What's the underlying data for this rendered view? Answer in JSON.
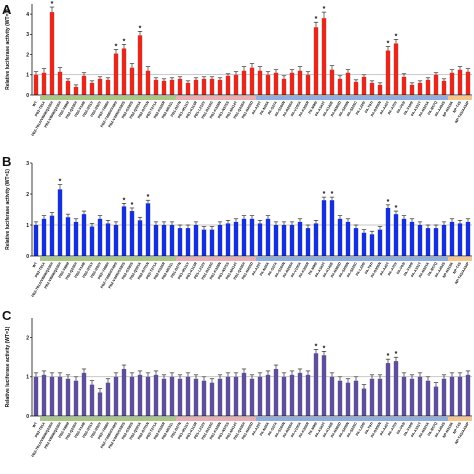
{
  "chart_data": [
    {
      "type": "bar",
      "panel": "A",
      "ylabel": "Relative luciferase activity (WT=1)",
      "ylim": [
        0,
        4.5
      ],
      "yticks": [
        0,
        1,
        2,
        3,
        4
      ],
      "reference_line": 1,
      "color": "#e02a20",
      "categories": [
        "WT",
        "PB2-T81A",
        "PB2-T81A/V89M/Q236H",
        "PB2-V89M/Q236H",
        "PB2-V89M",
        "PB2-Q236H",
        "PB2-V148I",
        "PB2-I251V",
        "PB2-I292V",
        "PB2-Y488H",
        "PB2-Y488H/V495I",
        "PB2-V495I/G590S",
        "PB2-G590S",
        "PB2-Q591K",
        "PB2-D701N",
        "PB2-T271A",
        "PB2-K526R",
        "PB2-M631L",
        "PB1-D27N",
        "PB1-M111V",
        "PB1-K113R",
        "PB1-L212V",
        "PB1-D216G",
        "PB1-K328N",
        "PB1-N375S",
        "PB1-M414T",
        "PB1-Q436H",
        "PB1-N455D",
        "PA-A20T",
        "PA-N26K",
        "PA-S37A",
        "PA-S184N",
        "PA-R266H",
        "PA-V100A",
        "PA-K356R",
        "PA-M86I",
        "PA-A343T",
        "PA-K142E",
        "PA-N383D",
        "PA-S409N",
        "PA-S225C",
        "PA-L226I",
        "PA-T97I",
        "PA-D306N",
        "PA-A45T",
        "PA-A70V",
        "PA-V63I",
        "PA-V100I",
        "PA-A331T",
        "PA-N321K",
        "PA-R57Q",
        "PA-A404S",
        "NP-N319K",
        "NP-T4S",
        "NP-T4S/A434P"
      ],
      "values": [
        1.0,
        1.1,
        4.1,
        1.15,
        0.7,
        0.4,
        0.95,
        0.6,
        0.8,
        0.75,
        2.05,
        2.3,
        1.35,
        2.95,
        1.2,
        0.75,
        0.7,
        0.75,
        0.8,
        0.6,
        0.75,
        0.8,
        0.8,
        0.75,
        0.95,
        1.0,
        1.2,
        1.35,
        1.2,
        1.0,
        1.1,
        0.8,
        1.1,
        1.2,
        1.0,
        3.35,
        3.8,
        1.25,
        0.8,
        1.1,
        0.65,
        0.9,
        0.6,
        0.5,
        2.2,
        2.55,
        0.9,
        0.5,
        0.6,
        0.75,
        1.0,
        0.7,
        1.1,
        1.25,
        1.15
      ],
      "errors": [
        0.15,
        0.2,
        0.25,
        0.2,
        0.1,
        0.1,
        0.15,
        0.1,
        0.1,
        0.1,
        0.2,
        0.2,
        0.2,
        0.2,
        0.2,
        0.1,
        0.1,
        0.1,
        0.1,
        0.1,
        0.1,
        0.1,
        0.1,
        0.1,
        0.1,
        0.15,
        0.2,
        0.2,
        0.2,
        0.15,
        0.15,
        0.15,
        0.15,
        0.2,
        0.15,
        0.25,
        0.3,
        0.2,
        0.15,
        0.15,
        0.1,
        0.1,
        0.1,
        0.1,
        0.2,
        0.2,
        0.15,
        0.1,
        0.1,
        0.1,
        0.1,
        0.1,
        0.15,
        0.15,
        0.15
      ],
      "significant": [
        2,
        10,
        11,
        13,
        35,
        36,
        44,
        45
      ],
      "significance_marker": "*",
      "group_bars": [
        {
          "color": "#a8c888",
          "from": 1,
          "to": 17
        },
        {
          "color": "#e8b0b4",
          "from": 18,
          "to": 27
        },
        {
          "color": "#90aee0",
          "from": 28,
          "to": 51
        },
        {
          "color": "#f5c58c",
          "from": 52,
          "to": 54
        }
      ]
    },
    {
      "type": "bar",
      "panel": "B",
      "ylabel": "Relative luciferase activity (WT=1)",
      "ylim": [
        0,
        3
      ],
      "yticks": [
        0,
        1,
        2,
        3
      ],
      "reference_line": 1,
      "color": "#1730d6",
      "categories": [
        "WT",
        "PB2-T81A",
        "PB2-T81A/V89M/Q236H",
        "PB2-V89M/Q236H",
        "PB2-V89M",
        "PB2-Q236H",
        "PB2-V148I",
        "PB2-I251V",
        "PB2-I292V",
        "PB2-Y488H",
        "PB2-Y488H/V495I",
        "PB2-V495I/G590S",
        "PB2-G590S",
        "PB2-Q591K",
        "PB2-D701N",
        "PB2-T271A",
        "PB2-K526R",
        "PB2-M631L",
        "PB1-D27N",
        "PB1-M111V",
        "PB1-K113R",
        "PB1-L212V",
        "PB1-D216G",
        "PB1-K328N",
        "PB1-N375S",
        "PB1-M414T",
        "PB1-Q436H",
        "PB1-N455D",
        "PA-A20T",
        "PA-N26K",
        "PA-S37A",
        "PA-S184N",
        "PA-R266H",
        "PA-V100A",
        "PA-K356R",
        "PA-M86I",
        "PA-A343T",
        "PA-K142E",
        "PA-N383D",
        "PA-S409N",
        "PA-S225C",
        "PA-L226I",
        "PA-T97I",
        "PA-D306N",
        "PA-A45T",
        "PA-A70V",
        "PA-V63I",
        "PA-V100I",
        "PA-A331T",
        "PA-N321K",
        "PA-R57Q",
        "PA-A404S",
        "NP-N319K",
        "NP-T4S",
        "NP-T4S/A434P"
      ],
      "values": [
        1.0,
        1.2,
        1.3,
        2.15,
        1.25,
        1.1,
        1.35,
        0.95,
        1.2,
        1.05,
        1.0,
        1.6,
        1.45,
        1.15,
        1.7,
        1.0,
        1.0,
        1.0,
        0.9,
        0.9,
        1.0,
        0.85,
        0.85,
        1.0,
        1.05,
        1.1,
        1.2,
        1.2,
        1.05,
        1.2,
        1.0,
        1.0,
        1.0,
        1.1,
        0.9,
        1.05,
        1.8,
        1.8,
        1.2,
        1.1,
        0.9,
        0.75,
        0.7,
        0.85,
        1.55,
        1.35,
        1.2,
        1.1,
        1.0,
        0.9,
        0.9,
        1.0,
        1.1,
        1.05,
        1.1
      ],
      "errors": [
        0.1,
        0.1,
        0.1,
        0.15,
        0.1,
        0.1,
        0.1,
        0.1,
        0.1,
        0.1,
        0.1,
        0.1,
        0.1,
        0.1,
        0.1,
        0.1,
        0.1,
        0.1,
        0.1,
        0.1,
        0.1,
        0.1,
        0.1,
        0.1,
        0.1,
        0.1,
        0.1,
        0.1,
        0.1,
        0.1,
        0.1,
        0.1,
        0.1,
        0.1,
        0.1,
        0.1,
        0.1,
        0.1,
        0.1,
        0.1,
        0.1,
        0.1,
        0.1,
        0.1,
        0.1,
        0.1,
        0.1,
        0.1,
        0.1,
        0.1,
        0.1,
        0.1,
        0.1,
        0.1,
        0.1
      ],
      "significant": [
        3,
        11,
        12,
        14,
        36,
        37,
        44,
        45
      ],
      "significance_marker": "*",
      "group_bars": [
        {
          "color": "#a8c888",
          "from": 1,
          "to": 17
        },
        {
          "color": "#e8b0b4",
          "from": 18,
          "to": 27
        },
        {
          "color": "#90aee0",
          "from": 28,
          "to": 51
        },
        {
          "color": "#f5c58c",
          "from": 52,
          "to": 54
        }
      ]
    },
    {
      "type": "bar",
      "panel": "C",
      "ylabel": "Relative luciferase activity (WT=1)",
      "ylim": [
        0,
        2.5
      ],
      "yticks": [
        0,
        1,
        2
      ],
      "reference_line": 1,
      "color": "#5e4f98",
      "categories": [
        "WT",
        "PB2-T81A",
        "PB2-T81A/V89M/Q236H",
        "PB2-V89M/Q236H",
        "PB2-V89M",
        "PB2-Q236H",
        "PB2-V148I",
        "PB2-I251V",
        "PB2-I292V",
        "PB2-Y488H",
        "PB2-Y488H/V495I",
        "PB2-V495I/G590S",
        "PB2-G590S",
        "PB2-Q591K",
        "PB2-D701N",
        "PB2-T271A",
        "PB2-K526R",
        "PB2-M631L",
        "PB1-D27N",
        "PB1-M111V",
        "PB1-K113R",
        "PB1-L212V",
        "PB1-D216G",
        "PB1-K328N",
        "PB1-N375S",
        "PB1-M414T",
        "PB1-Q436H",
        "PB1-N455D",
        "PA-A20T",
        "PA-N26K",
        "PA-S37A",
        "PA-S184N",
        "PA-R266H",
        "PA-V100A",
        "PA-K356R",
        "PA-M86I",
        "PA-A343T",
        "PA-K142E",
        "PA-N383D",
        "PA-S409N",
        "PA-S225C",
        "PA-L226I",
        "PA-T97I",
        "PA-D306N",
        "PA-A45T",
        "PA-A70V",
        "PA-V63I",
        "PA-V100I",
        "PA-A331T",
        "PA-N321K",
        "PA-R57Q",
        "PA-A404S",
        "NP-N319K",
        "NP-T4S",
        "NP-T4S/A434P"
      ],
      "values": [
        1.0,
        1.05,
        1.0,
        1.0,
        0.95,
        0.9,
        1.1,
        0.8,
        0.6,
        0.85,
        1.0,
        1.2,
        1.0,
        1.05,
        1.0,
        1.05,
        0.95,
        1.0,
        0.95,
        1.0,
        0.95,
        0.9,
        0.85,
        0.95,
        1.0,
        1.0,
        1.1,
        0.95,
        1.0,
        1.05,
        1.2,
        1.0,
        1.05,
        1.1,
        1.05,
        1.6,
        1.55,
        1.0,
        0.9,
        0.85,
        0.9,
        0.7,
        0.95,
        0.95,
        1.35,
        1.4,
        1.0,
        0.95,
        1.0,
        0.9,
        0.75,
        0.95,
        1.0,
        1.0,
        1.05
      ],
      "errors": [
        0.1,
        0.1,
        0.1,
        0.1,
        0.1,
        0.1,
        0.1,
        0.1,
        0.1,
        0.1,
        0.1,
        0.1,
        0.1,
        0.1,
        0.1,
        0.1,
        0.1,
        0.1,
        0.1,
        0.1,
        0.1,
        0.1,
        0.1,
        0.1,
        0.1,
        0.1,
        0.1,
        0.1,
        0.1,
        0.1,
        0.1,
        0.1,
        0.1,
        0.1,
        0.1,
        0.1,
        0.1,
        0.1,
        0.1,
        0.1,
        0.1,
        0.1,
        0.1,
        0.1,
        0.1,
        0.1,
        0.1,
        0.1,
        0.1,
        0.1,
        0.1,
        0.1,
        0.1,
        0.1,
        0.1
      ],
      "significant": [
        35,
        36,
        44,
        45
      ],
      "significance_marker": "*",
      "group_bars": [
        {
          "color": "#a8c888",
          "from": 1,
          "to": 17
        },
        {
          "color": "#e8b0b4",
          "from": 18,
          "to": 27
        },
        {
          "color": "#90aee0",
          "from": 28,
          "to": 51
        },
        {
          "color": "#f5c58c",
          "from": 52,
          "to": 54
        }
      ]
    }
  ]
}
